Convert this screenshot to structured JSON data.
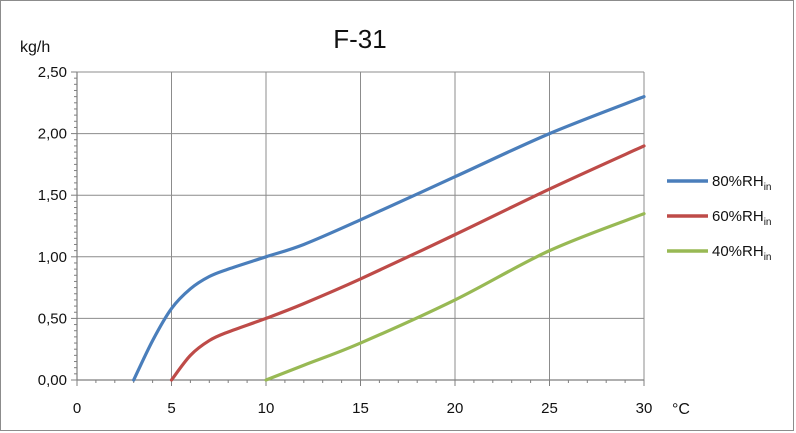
{
  "chart_data": {
    "type": "line",
    "title": "F-31",
    "ylabel": "kg/h",
    "xlabel": "°C",
    "xlim": [
      0,
      30
    ],
    "ylim": [
      0,
      2.5
    ],
    "x_ticks": [
      "0",
      "5",
      "10",
      "15",
      "20",
      "25",
      "30"
    ],
    "y_ticks": [
      "0,00",
      "0,50",
      "1,00",
      "1,50",
      "2,00",
      "2,50"
    ],
    "grid": true,
    "legend_position": "right",
    "series": [
      {
        "name": "80%RH",
        "name_sub": "in",
        "color": "#4a7ebb",
        "points": [
          [
            3,
            0
          ],
          [
            4,
            0.32
          ],
          [
            5,
            0.58
          ],
          [
            6,
            0.74
          ],
          [
            7,
            0.84
          ],
          [
            8,
            0.9
          ],
          [
            10,
            1.0
          ],
          [
            12,
            1.1
          ],
          [
            15,
            1.3
          ],
          [
            20,
            1.65
          ],
          [
            25,
            2.0
          ],
          [
            30,
            2.3
          ]
        ]
      },
      {
        "name": "60%RH",
        "name_sub": "in",
        "color": "#be4b48",
        "points": [
          [
            5,
            0
          ],
          [
            6,
            0.2
          ],
          [
            7,
            0.32
          ],
          [
            8,
            0.39
          ],
          [
            10,
            0.5
          ],
          [
            12,
            0.62
          ],
          [
            15,
            0.82
          ],
          [
            20,
            1.18
          ],
          [
            25,
            1.55
          ],
          [
            30,
            1.9
          ]
        ]
      },
      {
        "name": "40%RH",
        "name_sub": "in",
        "color": "#98b954",
        "points": [
          [
            10,
            0
          ],
          [
            12,
            0.12
          ],
          [
            15,
            0.3
          ],
          [
            20,
            0.65
          ],
          [
            25,
            1.05
          ],
          [
            30,
            1.35
          ]
        ]
      }
    ]
  }
}
